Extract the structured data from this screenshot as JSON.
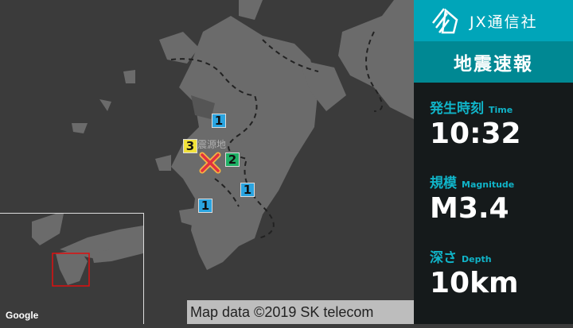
{
  "brand": {
    "name": "JX通信社",
    "logo": "jx-logo"
  },
  "title": "地震速報",
  "time": {
    "label": "発生時刻",
    "label_en": "Time",
    "value": "10:32"
  },
  "magnitude": {
    "label": "規模",
    "label_en": "Magnitude",
    "value": "M3.4"
  },
  "depth": {
    "label": "深さ",
    "label_en": "Depth",
    "value": "10km"
  },
  "map": {
    "epicenter_label": "震源地",
    "attribution": "Map data ©2019 SK telecom",
    "provider": "Google",
    "intensity_colors": {
      "1": "#2aa4e0",
      "2": "#1fb065",
      "3": "#f2e23a"
    },
    "markers": [
      {
        "intensity": "1"
      },
      {
        "intensity": "3"
      },
      {
        "intensity": "2"
      },
      {
        "intensity": "1"
      },
      {
        "intensity": "1"
      }
    ]
  }
}
